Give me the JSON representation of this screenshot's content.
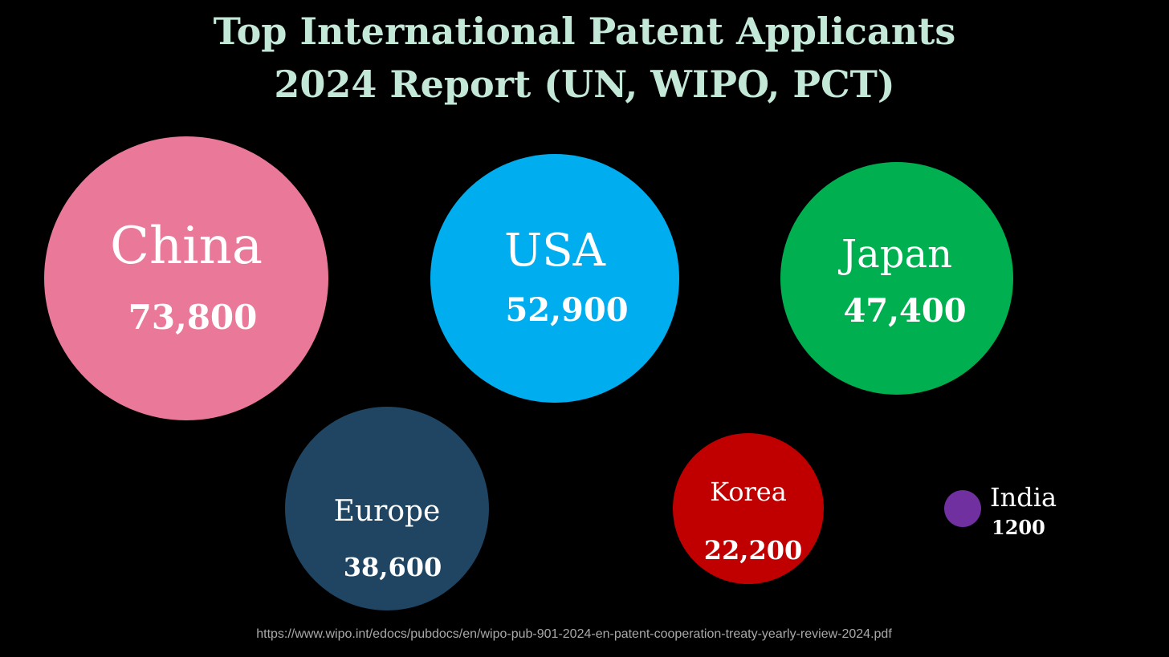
{
  "title_line1": "Top International Patent Applicants",
  "title_line2": "2024 Report (UN, WIPO, PCT)",
  "source_url": "https://www.wipo.int/edocs/pubdocs/en/wipo-pub-901-2024-en-patent-cooperation-treaty-yearly-review-2024.pdf",
  "chart_data": {
    "type": "bubble",
    "title": "Top International Patent Applicants 2024 Report (UN, WIPO, PCT)",
    "categories": [
      "China",
      "USA",
      "Japan",
      "Europe",
      "Korea",
      "India"
    ],
    "values": [
      73800,
      52900,
      47400,
      38600,
      22200,
      1200
    ],
    "value_labels": [
      "73,800",
      "52,900",
      "47,400",
      "38,600",
      "22,200",
      "1200"
    ],
    "colors": [
      "#ea7898",
      "#00adef",
      "#00b050",
      "#1f4562",
      "#c00000",
      "#7030a0"
    ],
    "text_color": "#ffffff",
    "title_color": "#c3e8d8",
    "background": "#000000"
  }
}
